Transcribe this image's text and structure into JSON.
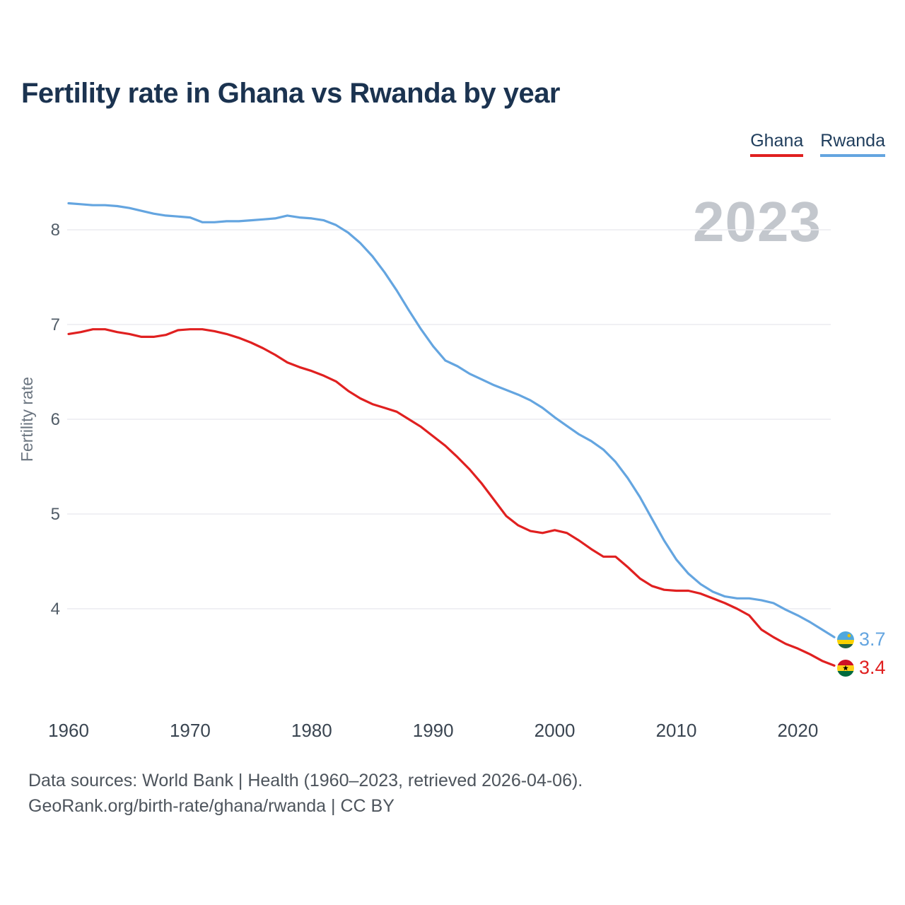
{
  "title": "Fertility rate in Ghana vs Rwanda by year",
  "watermark_year": "2023",
  "legend": {
    "items": [
      {
        "label": "Ghana",
        "color": "#e02020"
      },
      {
        "label": "Rwanda",
        "color": "#64a5e0"
      }
    ]
  },
  "end_labels": {
    "rwanda": "3.7",
    "ghana": "3.4"
  },
  "footer": {
    "line1": "Data sources: World Bank | Health (1960–2023, retrieved 2026-04-06).",
    "line2": "GeoRank.org/birth-rate/ghana/rwanda | CC BY"
  },
  "chart_data": {
    "type": "line",
    "title": "Fertility rate in Ghana vs Rwanda by year",
    "xlabel": "",
    "ylabel": "Fertility rate",
    "grid": "horizontal",
    "legend_position": "top-right",
    "x_ticks": [
      1960,
      1970,
      1980,
      1990,
      2000,
      2010,
      2020
    ],
    "y_ticks": [
      4,
      5,
      6,
      7,
      8
    ],
    "ylim": [
      3.2,
      8.5
    ],
    "x_range": [
      1960,
      2023
    ],
    "x": [
      1960,
      1961,
      1962,
      1963,
      1964,
      1965,
      1966,
      1967,
      1968,
      1969,
      1970,
      1971,
      1972,
      1973,
      1974,
      1975,
      1976,
      1977,
      1978,
      1979,
      1980,
      1981,
      1982,
      1983,
      1984,
      1985,
      1986,
      1987,
      1988,
      1989,
      1990,
      1991,
      1992,
      1993,
      1994,
      1995,
      1996,
      1997,
      1998,
      1999,
      2000,
      2001,
      2002,
      2003,
      2004,
      2005,
      2006,
      2007,
      2008,
      2009,
      2010,
      2011,
      2012,
      2013,
      2014,
      2015,
      2016,
      2017,
      2018,
      2019,
      2020,
      2021,
      2022,
      2023
    ],
    "series": [
      {
        "name": "Ghana",
        "color": "#e02020",
        "end_value": 3.4,
        "values": [
          6.9,
          6.92,
          6.95,
          6.95,
          6.92,
          6.9,
          6.87,
          6.87,
          6.89,
          6.94,
          6.95,
          6.95,
          6.93,
          6.9,
          6.86,
          6.81,
          6.75,
          6.68,
          6.6,
          6.55,
          6.51,
          6.46,
          6.4,
          6.3,
          6.22,
          6.16,
          6.12,
          6.08,
          6.0,
          5.92,
          5.82,
          5.72,
          5.6,
          5.47,
          5.32,
          5.15,
          4.98,
          4.88,
          4.82,
          4.8,
          4.83,
          4.8,
          4.72,
          4.63,
          4.55,
          4.55,
          4.44,
          4.32,
          4.24,
          4.2,
          4.19,
          4.19,
          4.16,
          4.11,
          4.06,
          4.0,
          3.93,
          3.78,
          3.7,
          3.63,
          3.58,
          3.52,
          3.45,
          3.4
        ]
      },
      {
        "name": "Rwanda",
        "color": "#64a5e0",
        "end_value": 3.7,
        "values": [
          8.28,
          8.27,
          8.26,
          8.26,
          8.25,
          8.23,
          8.2,
          8.17,
          8.15,
          8.14,
          8.13,
          8.08,
          8.08,
          8.09,
          8.09,
          8.1,
          8.11,
          8.12,
          8.15,
          8.13,
          8.12,
          8.1,
          8.05,
          7.97,
          7.86,
          7.72,
          7.55,
          7.36,
          7.15,
          6.95,
          6.77,
          6.62,
          6.56,
          6.48,
          6.42,
          6.36,
          6.31,
          6.26,
          6.2,
          6.12,
          6.02,
          5.93,
          5.84,
          5.77,
          5.68,
          5.55,
          5.38,
          5.18,
          4.95,
          4.72,
          4.52,
          4.37,
          4.26,
          4.18,
          4.13,
          4.11,
          4.11,
          4.09,
          4.06,
          3.99,
          3.93,
          3.86,
          3.78,
          3.7
        ]
      }
    ]
  }
}
